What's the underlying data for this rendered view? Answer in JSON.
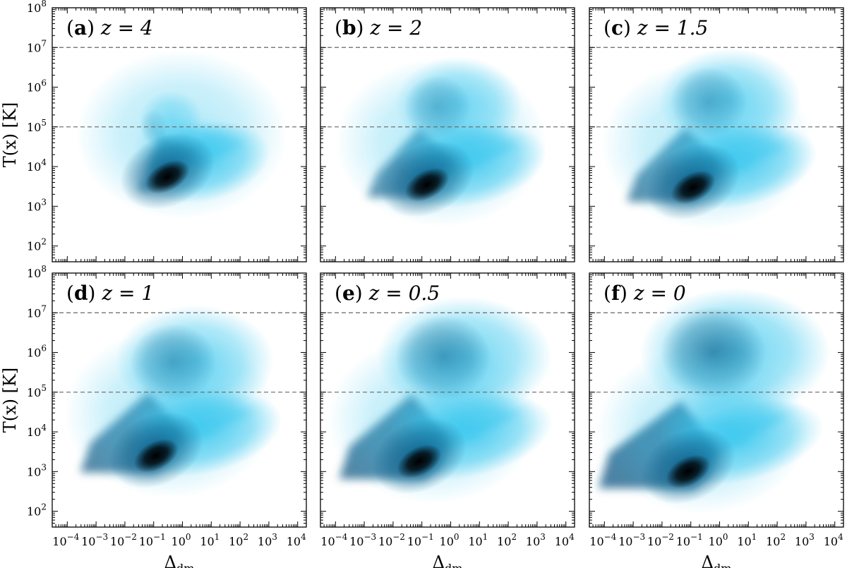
{
  "chart_data": [
    {
      "type": "heatmap",
      "panel_id": "(a)",
      "panel_text": "z = 4",
      "redshift": 4,
      "xscale": "log",
      "yscale": "log",
      "xlim": [
        3e-05,
        20000
      ],
      "ylim": [
        40,
        100000000
      ],
      "reference_lines": [
        100000,
        10000000
      ],
      "density_peak": {
        "delta_dm": 0.3,
        "T": 5500
      },
      "temperature_floor": 2500
    },
    {
      "type": "heatmap",
      "panel_id": "(b)",
      "panel_text": "z = 2",
      "redshift": 2,
      "xscale": "log",
      "yscale": "log",
      "xlim": [
        3e-05,
        20000
      ],
      "ylim": [
        40,
        100000000
      ],
      "reference_lines": [
        100000,
        10000000
      ],
      "density_peak": {
        "delta_dm": 0.15,
        "T": 3500
      },
      "temperature_floor": 1700
    },
    {
      "type": "heatmap",
      "panel_id": "(c)",
      "panel_text": "z = 1.5",
      "redshift": 1.5,
      "xscale": "log",
      "yscale": "log",
      "xlim": [
        3e-05,
        20000
      ],
      "ylim": [
        40,
        100000000
      ],
      "reference_lines": [
        100000,
        10000000
      ],
      "density_peak": {
        "delta_dm": 0.12,
        "T": 3000
      },
      "temperature_floor": 1300
    },
    {
      "type": "heatmap",
      "panel_id": "(d)",
      "panel_text": "z = 1",
      "redshift": 1,
      "xscale": "log",
      "yscale": "log",
      "xlim": [
        3e-05,
        20000
      ],
      "ylim": [
        40,
        100000000
      ],
      "reference_lines": [
        100000,
        10000000
      ],
      "density_peak": {
        "delta_dm": 0.12,
        "T": 2500
      },
      "temperature_floor": 950
    },
    {
      "type": "heatmap",
      "panel_id": "(e)",
      "panel_text": "z = 0.5",
      "redshift": 0.5,
      "xscale": "log",
      "yscale": "log",
      "xlim": [
        3e-05,
        20000
      ],
      "ylim": [
        40,
        100000000
      ],
      "reference_lines": [
        100000,
        10000000
      ],
      "density_peak": {
        "delta_dm": 0.08,
        "T": 1800
      },
      "temperature_floor": 650
    },
    {
      "type": "heatmap",
      "panel_id": "(f)",
      "panel_text": "z = 0",
      "redshift": 0,
      "xscale": "log",
      "yscale": "log",
      "xlim": [
        3e-05,
        20000
      ],
      "ylim": [
        40,
        100000000
      ],
      "reference_lines": [
        100000,
        10000000
      ],
      "density_peak": {
        "delta_dm": 0.08,
        "T": 1000
      },
      "temperature_floor": 380
    }
  ],
  "axes": {
    "xlabel": "Δdm",
    "ylabel": "T(x) [K]",
    "xticks": [
      -4,
      -3,
      -2,
      -1,
      0,
      1,
      2,
      3,
      4
    ],
    "yticks": [
      2,
      3,
      4,
      5,
      6,
      7,
      8
    ],
    "tick_base": "10"
  },
  "colors": {
    "light": "#35c6ee",
    "mid": "#0b5a85",
    "dark": "#000000",
    "reference_line": "#666666"
  }
}
